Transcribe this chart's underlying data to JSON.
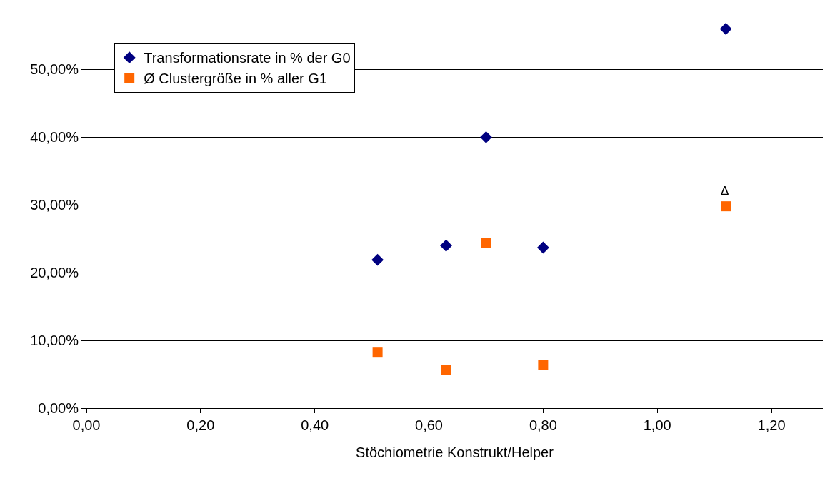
{
  "chart_data": {
    "type": "scatter",
    "xlabel": "Stöchiometrie Konstrukt/Helper",
    "series": [
      {
        "name": "Transformationsrate in % der G0",
        "color": "#000080",
        "marker": "diamond",
        "x": [
          0.51,
          0.63,
          0.7,
          0.8,
          1.12
        ],
        "values": [
          21.9,
          24.0,
          40.0,
          23.7,
          56.0
        ]
      },
      {
        "name": "Ø Clustergröße in % aller G1",
        "color": "#ff6600",
        "marker": "square",
        "x": [
          0.51,
          0.63,
          0.7,
          0.8,
          1.12
        ],
        "values": [
          8.2,
          5.6,
          24.4,
          6.4,
          29.8
        ]
      }
    ],
    "annotations": [
      "Δ"
    ],
    "xlim": [
      0,
      1.29
    ],
    "xticks": [
      {
        "value": 0,
        "label": "0,00"
      },
      {
        "value": 0.2,
        "label": "0,20"
      },
      {
        "value": 0.4,
        "label": "0,40"
      },
      {
        "value": 0.6,
        "label": "0,60"
      },
      {
        "value": 0.8,
        "label": "0,80"
      },
      {
        "value": 1.0,
        "label": "1,00"
      },
      {
        "value": 1.2,
        "label": "1,20"
      }
    ],
    "ylim": [
      0,
      59
    ],
    "yticks": [
      {
        "value": 0,
        "label": "0,00%"
      },
      {
        "value": 10,
        "label": "10,00%"
      },
      {
        "value": 20,
        "label": "20,00%"
      },
      {
        "value": 30,
        "label": "30,00%"
      },
      {
        "value": 40,
        "label": "40,00%"
      },
      {
        "value": 50,
        "label": "50,00%"
      }
    ],
    "grid": "y",
    "legend": "top left"
  }
}
